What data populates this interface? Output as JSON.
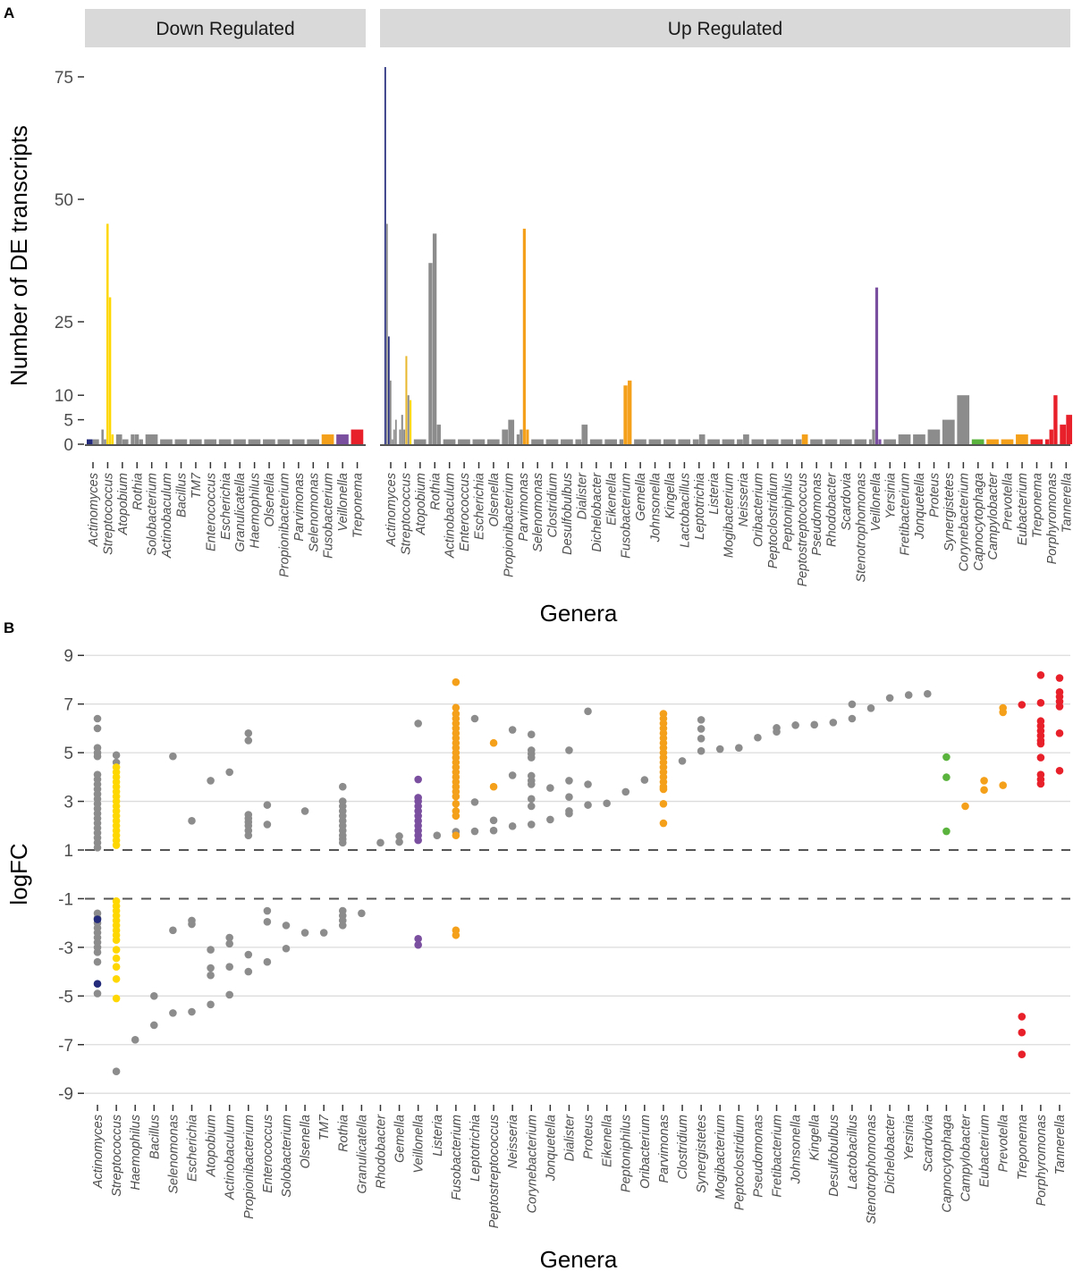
{
  "palette": {
    "gray": "#8c8c8c",
    "navy": "#232b7a",
    "yellow": "#ffd700",
    "gold": "#e8b830",
    "orange": "#f5a01a",
    "purple": "#7b4fa0",
    "red": "#e8202a",
    "green": "#5ab33c"
  },
  "panels": {
    "a_label": "A",
    "b_label": "B"
  },
  "chart_data": [
    {
      "type": "bar",
      "panel": "A",
      "facet": "Down Regulated",
      "ylabel": "Number of DE transcripts",
      "xlabel": "Genera",
      "yticks": [
        0,
        5,
        10,
        25,
        50,
        75
      ],
      "ylim": [
        0,
        78
      ],
      "grid": false,
      "categories": [
        "Actinomyces",
        "Streptococcus",
        "Atopobium",
        "Rothia",
        "Solobacterium",
        "Actinobaculum",
        "Bacillus",
        "TM7",
        "Enterococcus",
        "Escherichia",
        "Granulicatella",
        "Haemophilus",
        "Olsenella",
        "Propionibacterium",
        "Parvimonas",
        "Selenomonas",
        "Fusobacterium",
        "Veillonella",
        "Treponema"
      ],
      "bars": [
        [
          [
            1,
            "navy"
          ],
          [
            1,
            "gray"
          ]
        ],
        [
          [
            3,
            "gray"
          ],
          [
            1,
            "gray"
          ],
          [
            45,
            "yellow"
          ],
          [
            30,
            "yellow"
          ],
          [
            2,
            "yellow"
          ]
        ],
        [
          [
            2,
            "gray"
          ],
          [
            1,
            "gray"
          ]
        ],
        [
          [
            2,
            "gray"
          ],
          [
            2,
            "gray"
          ],
          [
            1,
            "gray"
          ]
        ],
        [
          [
            2,
            "gray"
          ]
        ],
        [
          [
            1,
            "gray"
          ]
        ],
        [
          [
            1,
            "gray"
          ]
        ],
        [
          [
            1,
            "gray"
          ]
        ],
        [
          [
            1,
            "gray"
          ]
        ],
        [
          [
            1,
            "gray"
          ]
        ],
        [
          [
            1,
            "gray"
          ]
        ],
        [
          [
            1,
            "gray"
          ]
        ],
        [
          [
            1,
            "gray"
          ]
        ],
        [
          [
            1,
            "gray"
          ]
        ],
        [
          [
            1,
            "gray"
          ]
        ],
        [
          [
            1,
            "gray"
          ]
        ],
        [
          [
            2,
            "orange"
          ]
        ],
        [
          [
            2,
            "purple"
          ]
        ],
        [
          [
            3,
            "red"
          ]
        ]
      ]
    },
    {
      "type": "bar",
      "panel": "A",
      "facet": "Up Regulated",
      "categories": [
        "Actinomyces",
        "Streptococcus",
        "Atopobium",
        "Rothia",
        "Actinobaculum",
        "Enterococcus",
        "Escherichia",
        "Olsenella",
        "Propionibacterium",
        "Parvimonas",
        "Selenomonas",
        "Clostridium",
        "Desulfobulbus",
        "Dialister",
        "Dichelobacter",
        "Eikenella",
        "Fusobacterium",
        "Gemella",
        "Johnsonella",
        "Kingella",
        "Lactobacillus",
        "Leptotrichia",
        "Listeria",
        "Mogibacterium",
        "Neisseria",
        "Oribacterium",
        "Peptoclostridium",
        "Peptoniphilus",
        "Peptostreptococcus",
        "Pseudomonas",
        "Rhodobacter",
        "Scardovia",
        "Stenotrophomonas",
        "Veillonella",
        "Yersinia",
        "Fretibacterium",
        "Jonquetella",
        "Proteus",
        "Synergistetes",
        "Corynebacterium",
        "Capnocytophaga",
        "Campylobacter",
        "Prevotella",
        "Eubacterium",
        "Treponema",
        "Porphyromonas",
        "Tannerella"
      ],
      "bars": [
        [
          [
            77,
            "navy"
          ],
          [
            45,
            "gray"
          ],
          [
            22,
            "navy"
          ],
          [
            13,
            "gray"
          ],
          [
            1,
            "gray"
          ],
          [
            3,
            "gray"
          ],
          [
            5,
            "gray"
          ]
        ],
        [
          [
            3,
            "gray"
          ],
          [
            6,
            "gray"
          ],
          [
            3,
            "gray"
          ],
          [
            18,
            "gold"
          ],
          [
            10,
            "gray"
          ],
          [
            9,
            "yellow"
          ]
        ],
        [
          [
            1,
            "gray"
          ]
        ],
        [
          [
            37,
            "gray"
          ],
          [
            43,
            "gray"
          ],
          [
            4,
            "gray"
          ]
        ],
        [
          [
            1,
            "gray"
          ]
        ],
        [
          [
            1,
            "gray"
          ]
        ],
        [
          [
            1,
            "gray"
          ]
        ],
        [
          [
            1,
            "gray"
          ]
        ],
        [
          [
            3,
            "gray"
          ],
          [
            5,
            "gray"
          ]
        ],
        [
          [
            2,
            "gray"
          ],
          [
            3,
            "gray"
          ],
          [
            44,
            "orange"
          ],
          [
            3,
            "orange"
          ]
        ],
        [
          [
            1,
            "gray"
          ]
        ],
        [
          [
            1,
            "gray"
          ]
        ],
        [
          [
            1,
            "gray"
          ]
        ],
        [
          [
            1,
            "gray"
          ],
          [
            4,
            "gray"
          ]
        ],
        [
          [
            1,
            "gray"
          ]
        ],
        [
          [
            1,
            "gray"
          ]
        ],
        [
          [
            1,
            "gray"
          ],
          [
            12,
            "orange"
          ],
          [
            13,
            "orange"
          ]
        ],
        [
          [
            1,
            "gray"
          ]
        ],
        [
          [
            1,
            "gray"
          ]
        ],
        [
          [
            1,
            "gray"
          ]
        ],
        [
          [
            1,
            "gray"
          ]
        ],
        [
          [
            1,
            "gray"
          ],
          [
            2,
            "gray"
          ]
        ],
        [
          [
            1,
            "gray"
          ]
        ],
        [
          [
            1,
            "gray"
          ]
        ],
        [
          [
            1,
            "gray"
          ],
          [
            2,
            "gray"
          ]
        ],
        [
          [
            1,
            "gray"
          ]
        ],
        [
          [
            1,
            "gray"
          ]
        ],
        [
          [
            1,
            "gray"
          ]
        ],
        [
          [
            1,
            "gray"
          ],
          [
            2,
            "orange"
          ]
        ],
        [
          [
            1,
            "gray"
          ]
        ],
        [
          [
            1,
            "gray"
          ]
        ],
        [
          [
            1,
            "gray"
          ]
        ],
        [
          [
            1,
            "gray"
          ]
        ],
        [
          [
            1,
            "gray"
          ],
          [
            3,
            "gray"
          ],
          [
            32,
            "purple"
          ],
          [
            1,
            "purple"
          ]
        ],
        [
          [
            1,
            "gray"
          ]
        ],
        [
          [
            2,
            "gray"
          ]
        ],
        [
          [
            2,
            "gray"
          ]
        ],
        [
          [
            3,
            "gray"
          ]
        ],
        [
          [
            5,
            "gray"
          ]
        ],
        [
          [
            10,
            "gray"
          ]
        ],
        [
          [
            1,
            "green"
          ]
        ],
        [
          [
            1,
            "orange"
          ]
        ],
        [
          [
            1,
            "orange"
          ]
        ],
        [
          [
            2,
            "orange"
          ]
        ],
        [
          [
            1,
            "red"
          ]
        ],
        [
          [
            1,
            "red"
          ],
          [
            3,
            "red"
          ],
          [
            10,
            "red"
          ]
        ],
        [
          [
            4,
            "red"
          ],
          [
            6,
            "red"
          ]
        ]
      ]
    },
    {
      "type": "scatter",
      "panel": "B",
      "ylabel": "logFC",
      "xlabel": "Genera",
      "yticks": [
        9,
        7,
        5,
        3,
        1,
        -1,
        -3,
        -5,
        -7,
        -9
      ],
      "ylim": [
        -9.4,
        9.4
      ],
      "grid": true,
      "reference_lines": [
        1,
        -1
      ],
      "categories": [
        "Actinomyces",
        "Streptococcus",
        "Haemophilus",
        "Bacillus",
        "Selenomonas",
        "Escherichia",
        "Atopobium",
        "Actinobaculum",
        "Propionibacterium",
        "Enterococcus",
        "Solobacterium",
        "Olsenella",
        "TM7",
        "Rothia",
        "Granulicatella",
        "Rhodobacter",
        "Gemella",
        "Veillonella",
        "Listeria",
        "Fusobacterium",
        "Leptotrichia",
        "Peptostreptococcus",
        "Neisseria",
        "Corynebacterium",
        "Jonquetella",
        "Dialister",
        "Proteus",
        "Eikenella",
        "Peptoniphilus",
        "Oribacterium",
        "Parvimonas",
        "Clostridium",
        "Synergistetes",
        "Mogibacterium",
        "Peptoclostridium",
        "Pseudomonas",
        "Fretibacterium",
        "Johnsonella",
        "Kingella",
        "Desulfobulbus",
        "Lactobacillus",
        "Stenotrophomonas",
        "Dichelobacter",
        "Yersinia",
        "Scardovia",
        "Capnocytophaga",
        "Campylobacter",
        "Eubacterium",
        "Prevotella",
        "Treponema",
        "Porphyromonas",
        "Tannerella"
      ],
      "points": [
        {
          "gray": [
            6.4,
            6.0,
            5.2,
            5.0,
            4.85,
            4.1,
            3.9,
            3.7,
            3.5,
            3.3,
            3.1,
            2.9,
            2.7,
            2.5,
            2.3,
            2.1,
            1.9,
            1.7,
            1.5,
            1.3,
            1.1,
            -1.6,
            -1.8,
            -2.0,
            -2.2,
            -2.4,
            -2.6,
            -2.8,
            -3.0,
            -3.2,
            -3.6,
            -4.9
          ],
          "navy": [
            -1.85,
            -4.5
          ]
        },
        {
          "gray": [
            4.9,
            4.6,
            -8.1
          ],
          "yellow": [
            4.4,
            4.2,
            4.0,
            3.8,
            3.6,
            3.4,
            3.2,
            3.0,
            2.8,
            2.6,
            2.4,
            2.2,
            2.0,
            1.8,
            1.6,
            1.4,
            1.2,
            -1.1,
            -1.3,
            -1.5,
            -1.7,
            -1.9,
            -2.1,
            -2.3,
            -2.5,
            -2.7,
            -3.1,
            -3.45,
            -3.8,
            -4.3,
            -5.1
          ]
        },
        {
          "gray": [
            -6.8
          ]
        },
        {
          "gray": [
            -5.0,
            -6.2
          ]
        },
        {
          "gray": [
            4.85,
            -2.3,
            -5.7
          ]
        },
        {
          "gray": [
            2.2,
            -1.9,
            -2.05,
            -5.65
          ]
        },
        {
          "gray": [
            3.85,
            -3.1,
            -3.85,
            -4.15,
            -5.35
          ]
        },
        {
          "gray": [
            4.2,
            -2.6,
            -2.85,
            -3.8,
            -4.95
          ]
        },
        {
          "gray": [
            5.8,
            5.5,
            2.45,
            2.3,
            2.15,
            2.0,
            1.8,
            1.6,
            -3.3,
            -4.0
          ]
        },
        {
          "gray": [
            2.85,
            2.05,
            -1.5,
            -1.95,
            -3.6
          ]
        },
        {
          "gray": [
            -2.1,
            -3.05
          ]
        },
        {
          "gray": [
            2.6,
            -2.4
          ]
        },
        {
          "gray": [
            -2.4
          ]
        },
        {
          "gray": [
            3.6,
            3.0,
            2.8,
            2.6,
            2.4,
            2.2,
            2.0,
            1.8,
            1.6,
            1.45,
            1.3,
            -1.5,
            -1.7,
            -1.9,
            -2.1
          ]
        },
        {
          "gray": [
            -1.6
          ]
        },
        {
          "gray": [
            1.3
          ]
        },
        {
          "gray": [
            1.57,
            1.33
          ]
        },
        {
          "gray": [
            6.2
          ],
          "purple": [
            3.9,
            3.15,
            3.0,
            2.8,
            2.6,
            2.4,
            2.2,
            2.0,
            1.8,
            1.6,
            1.4,
            -2.65,
            -2.9
          ]
        },
        {
          "gray": [
            1.6
          ]
        },
        {
          "gray": [
            1.75
          ],
          "orange": [
            7.9,
            6.85,
            6.6,
            6.4,
            6.2,
            6.0,
            5.8,
            5.6,
            5.4,
            5.2,
            5.0,
            4.8,
            4.6,
            4.4,
            4.2,
            4.0,
            3.8,
            3.6,
            3.4,
            3.2,
            2.9,
            2.6,
            2.4,
            1.6,
            -2.3,
            -2.5
          ]
        },
        {
          "gray": [
            6.4,
            2.97,
            1.77
          ]
        },
        {
          "gray": [
            2.22,
            1.8
          ],
          "orange": [
            5.4,
            3.6
          ]
        },
        {
          "gray": [
            5.94,
            4.07,
            1.98
          ]
        },
        {
          "gray": [
            5.75,
            5.1,
            4.95,
            4.8,
            4.05,
            3.85,
            3.7,
            3.1,
            2.8,
            2.05
          ]
        },
        {
          "gray": [
            3.55,
            2.25
          ]
        },
        {
          "gray": [
            5.1,
            3.85,
            3.18,
            2.6,
            2.5
          ]
        },
        {
          "gray": [
            6.7,
            3.7,
            2.85
          ]
        },
        {
          "gray": [
            2.92
          ]
        },
        {
          "gray": [
            3.39
          ]
        },
        {
          "gray": [
            3.88
          ]
        },
        {
          "orange": [
            6.6,
            6.4,
            6.2,
            6.0,
            5.8,
            5.6,
            5.4,
            5.2,
            5.0,
            4.8,
            4.6,
            4.4,
            4.2,
            4.0,
            3.8,
            3.6,
            3.5,
            2.9,
            2.1
          ]
        },
        {
          "gray": [
            4.66
          ]
        },
        {
          "gray": [
            6.35,
            5.98,
            5.58,
            5.07
          ]
        },
        {
          "gray": [
            5.15
          ]
        },
        {
          "gray": [
            5.2
          ]
        },
        {
          "gray": [
            5.62
          ]
        },
        {
          "gray": [
            6.02,
            5.86
          ]
        },
        {
          "gray": [
            6.13
          ]
        },
        {
          "gray": [
            6.15
          ]
        },
        {
          "gray": [
            6.24
          ]
        },
        {
          "gray": [
            6.99,
            6.4
          ]
        },
        {
          "gray": [
            6.83
          ]
        },
        {
          "gray": [
            7.25
          ]
        },
        {
          "gray": [
            7.37
          ]
        },
        {
          "gray": [
            7.42
          ]
        },
        {
          "green": [
            4.82,
            3.99,
            1.77
          ]
        },
        {
          "orange": [
            2.8
          ]
        },
        {
          "orange": [
            3.85,
            3.47
          ]
        },
        {
          "orange": [
            6.84,
            6.66,
            3.66
          ]
        },
        {
          "red": [
            6.97,
            -5.85,
            -6.5,
            -7.4
          ]
        },
        {
          "red": [
            8.19,
            7.05,
            6.3,
            6.1,
            5.9,
            5.7,
            5.5,
            5.37,
            4.8,
            4.1,
            3.9,
            3.72
          ]
        },
        {
          "red": [
            8.07,
            7.49,
            7.3,
            7.1,
            6.9,
            5.8,
            4.26
          ]
        }
      ]
    }
  ]
}
